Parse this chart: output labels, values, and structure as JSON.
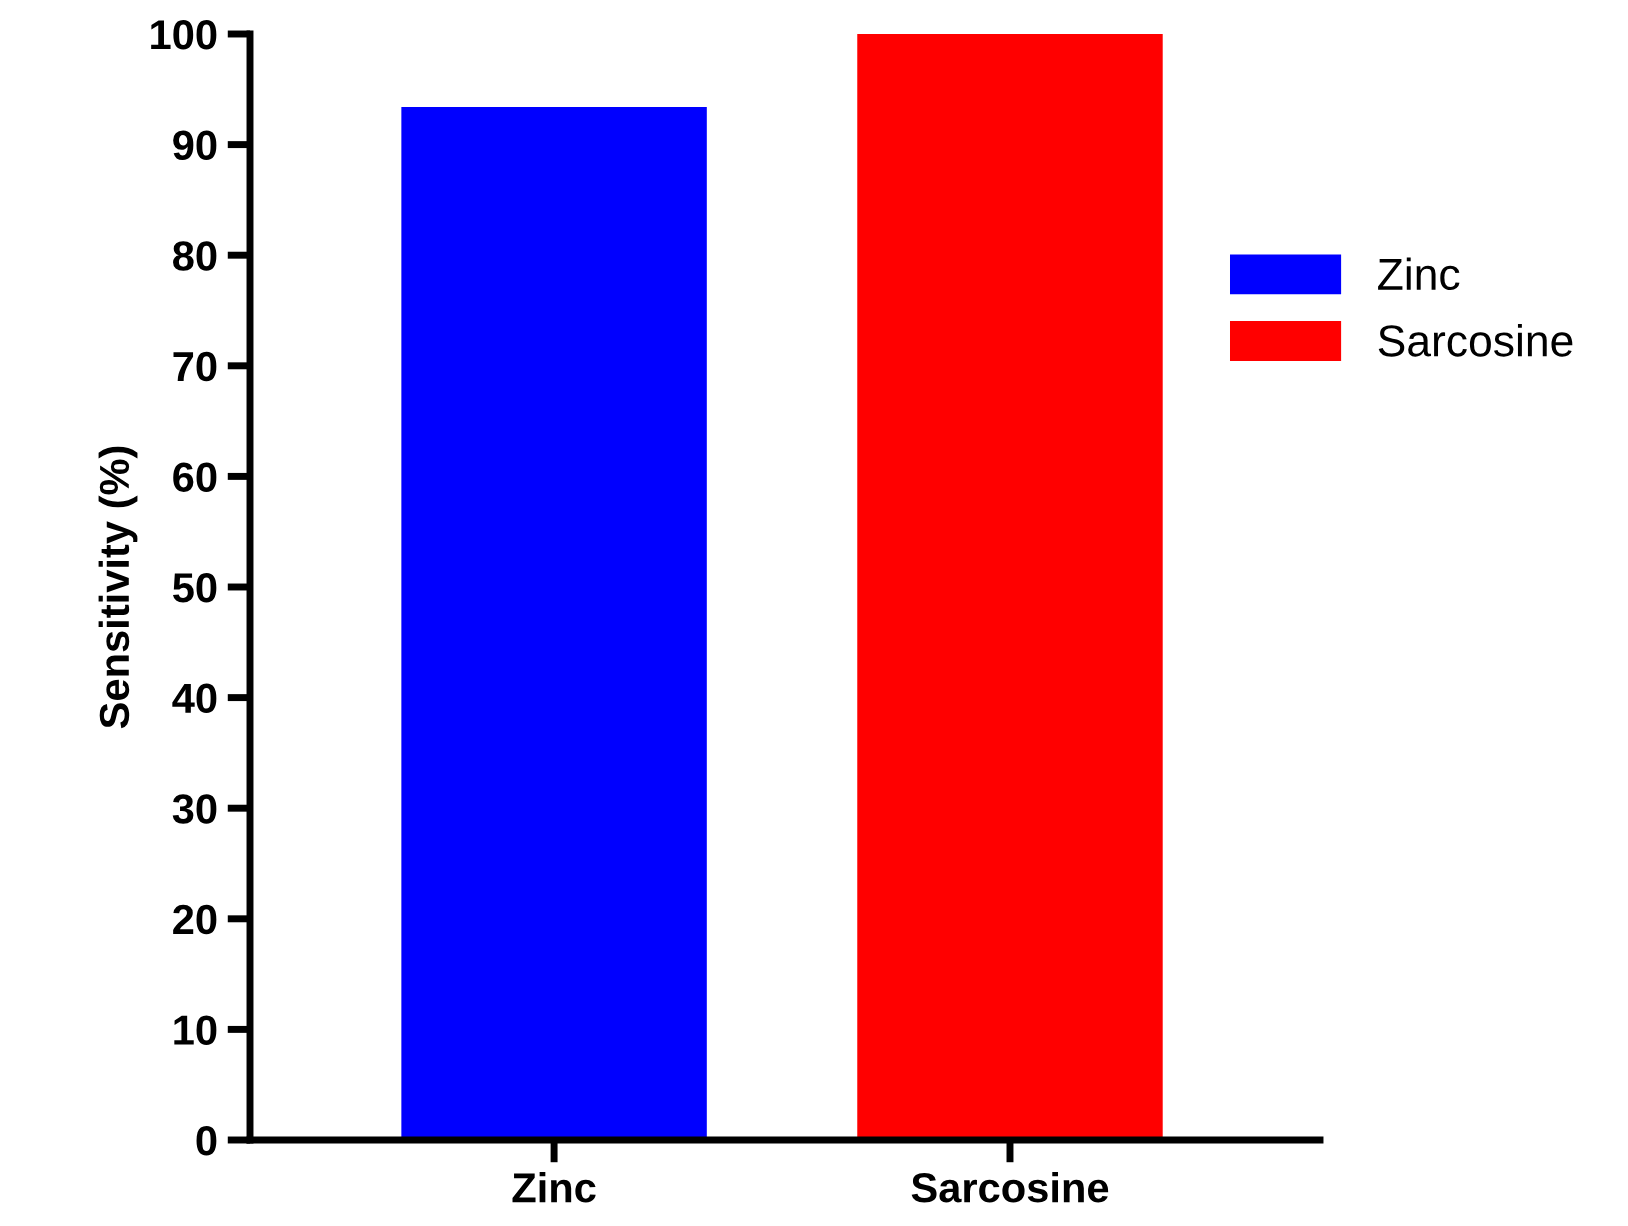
{
  "chart_data": {
    "type": "bar",
    "ylabel": "Sensitivity (%)",
    "categories": [
      "Zinc",
      "Sarcosine"
    ],
    "series": [
      {
        "name": "Zinc",
        "color": "#0000ff",
        "values": [
          93.4,
          null
        ]
      },
      {
        "name": "Sarcosine",
        "color": "#ff0000",
        "values": [
          null,
          100
        ]
      }
    ],
    "ylim": [
      0,
      100
    ],
    "yticks": [
      0,
      10,
      20,
      30,
      40,
      50,
      60,
      70,
      80,
      90,
      100
    ],
    "grid": false,
    "legend": "right"
  }
}
